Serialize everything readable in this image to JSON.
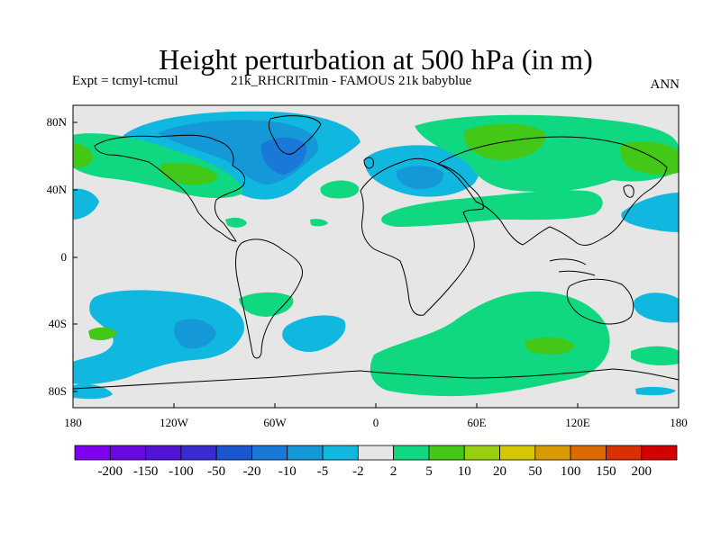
{
  "header": {
    "title": "Height perturbation at 500 hPa (in m)",
    "expt": "Expt = tcmyl-tcmul",
    "run": "21k_RHCRITmin - FAMOUS 21k babyblue",
    "season": "ANN"
  },
  "axes": {
    "lat_ticks": [
      "80N",
      "40N",
      "0",
      "40S",
      "80S"
    ],
    "lon_ticks": [
      "180",
      "120W",
      "60W",
      "0",
      "60E",
      "120E",
      "180"
    ]
  },
  "colorbar": {
    "labels": [
      "-200",
      "-150",
      "-100",
      "-50",
      "-20",
      "-10",
      "-5",
      "-2",
      "2",
      "5",
      "10",
      "20",
      "50",
      "100",
      "150",
      "200"
    ],
    "colors": [
      "#7f00ee",
      "#6a08e0",
      "#5412d4",
      "#3a2ad2",
      "#1956d0",
      "#1a78d8",
      "#1498d8",
      "#10b8e0",
      "#e6e6e6",
      "#10d880",
      "#44c818",
      "#98d010",
      "#d6c800",
      "#d89a00",
      "#dc6a00",
      "#d83000",
      "#d40000"
    ]
  },
  "map": {
    "background_color": "#e6e6e6"
  }
}
